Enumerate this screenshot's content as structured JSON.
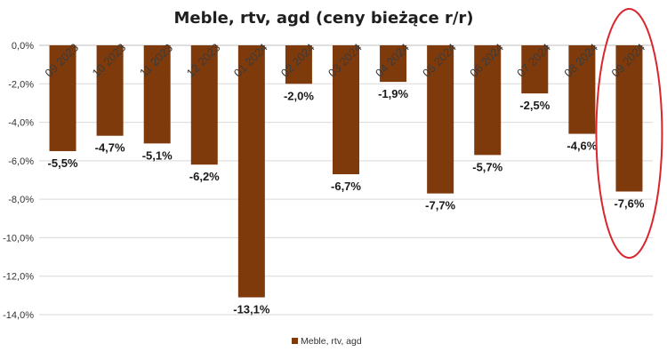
{
  "chart_data": {
    "type": "bar",
    "title": "Meble, rtv, agd (ceny bieżące r/r)",
    "categories": [
      "09 2023",
      "10 2023",
      "11 2023",
      "12 2023",
      "01 2024",
      "02 2024",
      "03 2024",
      "04 2024",
      "05 2024",
      "06 2024",
      "07 2024",
      "08 2024",
      "09 2024"
    ],
    "series": [
      {
        "name": "Meble, rtv, agd",
        "values": [
          -5.5,
          -4.7,
          -5.1,
          -6.2,
          -13.1,
          -2.0,
          -6.7,
          -1.9,
          -7.7,
          -5.7,
          -2.5,
          -4.6,
          -7.6
        ],
        "labels": [
          "-5,5%",
          "-4,7%",
          "-5,1%",
          "-6,2%",
          "-13,1%",
          "-2,0%",
          "-6,7%",
          "-1,9%",
          "-7,7%",
          "-5,7%",
          "-2,5%",
          "-4,6%",
          "-7,6%"
        ],
        "color": "#7f3a0c"
      }
    ],
    "y_ticks": [
      0,
      -2,
      -4,
      -6,
      -8,
      -10,
      -12,
      -14
    ],
    "y_tick_labels": [
      "0,0%",
      "-2,0%",
      "-4,0%",
      "-6,0%",
      "-8,0%",
      "-10,0%",
      "-12,0%",
      "-14,0%"
    ],
    "ylim": [
      -14,
      0
    ],
    "grid": true,
    "legend_position": "bottom",
    "highlight": {
      "category": "09 2024",
      "shape": "ellipse",
      "color": "#d9262c"
    }
  }
}
